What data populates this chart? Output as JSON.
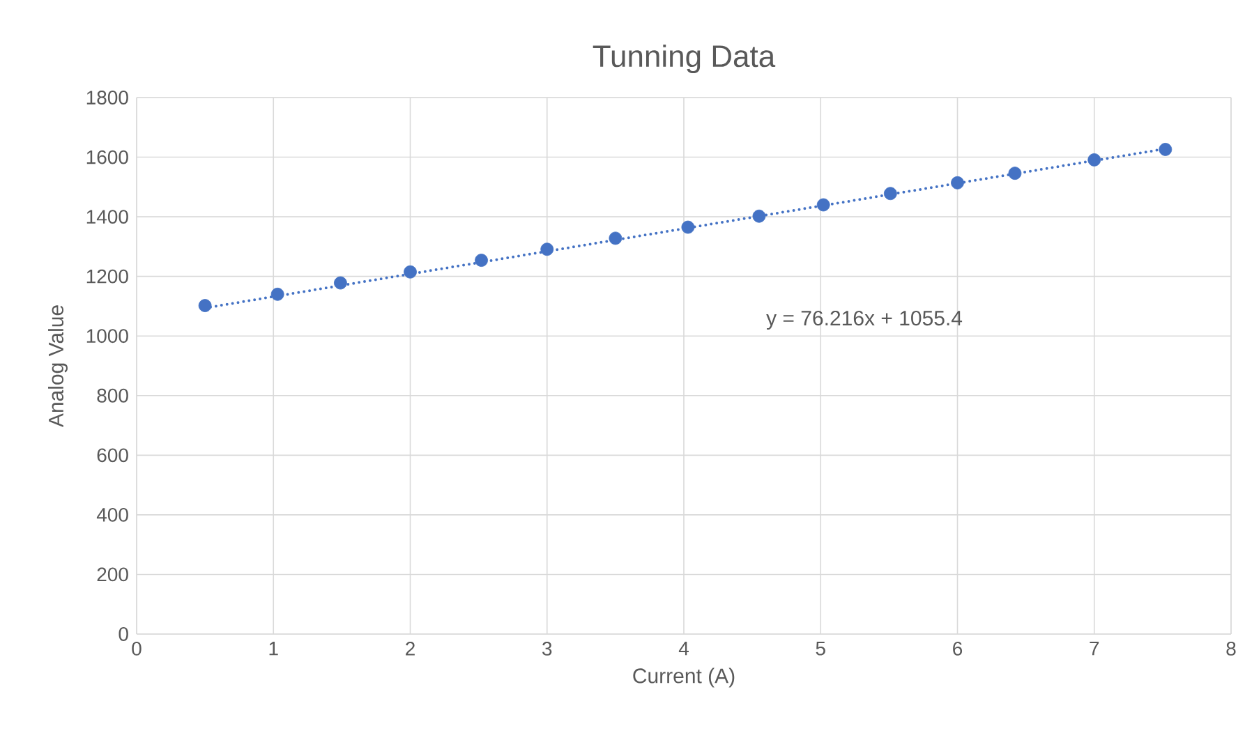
{
  "chart_data": {
    "type": "scatter",
    "title": "Tunning Data",
    "xlabel": "Current (A)",
    "ylabel": "Analog Value",
    "xlim": [
      0,
      8
    ],
    "xticks": [
      0,
      1,
      2,
      3,
      4,
      5,
      6,
      7,
      8
    ],
    "ylim": [
      0,
      1800
    ],
    "yticks": [
      0,
      200,
      400,
      600,
      800,
      1000,
      1200,
      1400,
      1600,
      1800
    ],
    "grid": true,
    "series": [
      {
        "color": "#4472c4",
        "marker": "circle",
        "x": [
          0.5,
          1.03,
          1.49,
          2.0,
          2.52,
          3.0,
          3.5,
          4.03,
          4.55,
          5.02,
          5.51,
          6.0,
          6.42,
          7.0,
          7.52
        ],
        "values": [
          1102,
          1140,
          1178,
          1215,
          1254,
          1291,
          1328,
          1365,
          1402,
          1440,
          1478,
          1514,
          1546,
          1591,
          1626
        ]
      },
      {
        "type": "line",
        "color": "#4472c4",
        "marker": "none",
        "line_style": "dotted",
        "x": [
          0.5,
          7.52
        ],
        "values": [
          1094,
          1628
        ]
      }
    ],
    "annotations": [
      "y = 76.216x + 1055.4"
    ]
  }
}
